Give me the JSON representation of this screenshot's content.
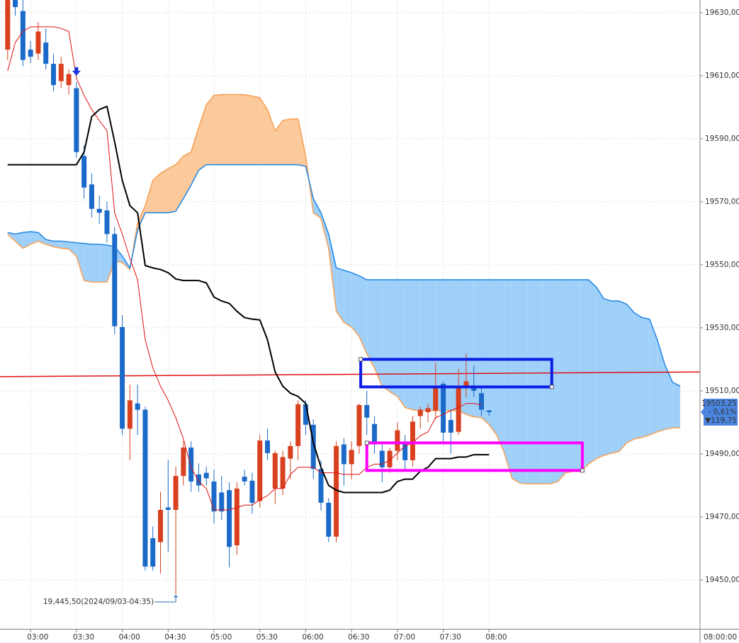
{
  "chart_data": {
    "type": "candlestick",
    "x": [
      "02:45",
      "02:50",
      "02:55",
      "03:00",
      "03:05",
      "03:10",
      "03:15",
      "03:20",
      "03:25",
      "03:30",
      "03:35",
      "03:40",
      "03:45",
      "03:50",
      "03:55",
      "04:00",
      "04:05",
      "04:10",
      "04:15",
      "04:20",
      "04:25",
      "04:30",
      "04:35",
      "04:40",
      "04:45",
      "04:50",
      "04:55",
      "05:00",
      "05:05",
      "05:10",
      "05:15",
      "05:20",
      "05:25",
      "05:30",
      "05:35",
      "05:40",
      "05:45",
      "05:50",
      "05:55",
      "06:00",
      "06:05",
      "06:10",
      "06:15",
      "06:20",
      "06:25",
      "06:30",
      "06:35",
      "06:40",
      "06:45",
      "06:50",
      "06:55",
      "07:00",
      "07:05",
      "07:10",
      "07:15",
      "07:20",
      "07:25",
      "07:30",
      "07:35",
      "07:40",
      "07:45",
      "07:50",
      "07:55",
      "08:00",
      "08:05",
      "08:10",
      "08:15",
      "08:20",
      "08:25",
      "08:30",
      "08:35",
      "08:40",
      "08:45",
      "08:50",
      "08:55",
      "09:00",
      "09:05",
      "09:10",
      "09:15",
      "09:20",
      "09:25",
      "09:30",
      "09:35",
      "09:40",
      "09:45",
      "09:50",
      "09:55",
      "10:00",
      "10:05"
    ],
    "xlim": [
      "02:40",
      "10:18"
    ],
    "xticks": [
      "03:00",
      "03:30",
      "04:00",
      "04:30",
      "05:00",
      "05:30",
      "06:00",
      "06:30",
      "07:00",
      "07:30",
      "08:00"
    ],
    "ylim": [
      19434.5,
      19634
    ],
    "yticks": [
      {
        "value": 19630,
        "label": "19630,00"
      },
      {
        "value": 19610,
        "label": "19610,00"
      },
      {
        "value": 19590,
        "label": "19590,00"
      },
      {
        "value": 19570,
        "label": "19570,00"
      },
      {
        "value": 19550,
        "label": "19550,00"
      },
      {
        "value": 19530,
        "label": "19530,00"
      },
      {
        "value": 19510,
        "label": "19510,00"
      },
      {
        "value": 19490,
        "label": "19490,00"
      },
      {
        "value": 19470,
        "label": "19470,00"
      },
      {
        "value": 19450,
        "label": "19450,00"
      }
    ],
    "grid": true,
    "candles": {
      "up_color": "#d8401f",
      "down_color": "#1b6ac9",
      "open": [
        19618.25,
        19634,
        19630.5,
        19618.25,
        19617,
        19620.5,
        19613.75,
        19608.25,
        19607,
        19606,
        19584.5,
        19575.5,
        19567.75,
        19567.25,
        19559.75,
        19530.25,
        19498,
        19506,
        19504,
        19463.25,
        19462,
        19473,
        19472.25,
        19483,
        19492,
        19483.5,
        19484,
        19481.25,
        19477.75,
        19478.5,
        19461,
        19482.75,
        19481.5,
        19475,
        19494.25,
        19479,
        19479,
        19488.5,
        19492.5,
        19505.75,
        19499.25,
        19485.25,
        19474.5,
        19463.75,
        19493,
        19486.75,
        19492.5,
        19505.5,
        19499.5,
        19491,
        19485.75,
        19491,
        19493.75,
        19488,
        19502,
        19503.25,
        19503.75,
        19512.25,
        19500.75,
        19497,
        19511.5,
        19511.5,
        19509.25,
        19503.75,
        null,
        null,
        null,
        null,
        null,
        null,
        null,
        null,
        null,
        null,
        null,
        null,
        null,
        null,
        null,
        null,
        null,
        null,
        null,
        null,
        null,
        null,
        null,
        null,
        null
      ],
      "high": [
        19634,
        19634,
        19634,
        19621,
        19627,
        19625,
        19617,
        19616,
        19612,
        19608,
        19588,
        19579,
        19572,
        19570,
        19562,
        19534,
        19512,
        19512,
        19505,
        19467,
        19478,
        19488,
        19486,
        19494,
        19494,
        19487,
        19486,
        19485,
        19483,
        19481,
        19481,
        19485,
        19484,
        19496,
        19498,
        19491,
        19491,
        19494,
        19507,
        19507,
        19501,
        19488,
        19476,
        19494,
        19495,
        19494,
        19506,
        19510,
        19502,
        19494,
        19492,
        19500,
        19496,
        19502,
        19505,
        19506,
        19519,
        19513,
        19504,
        19517,
        19522,
        19518,
        19511,
        19504,
        null,
        null,
        null,
        null,
        null,
        null,
        null,
        null,
        null,
        null,
        null,
        null,
        null,
        null,
        null,
        null,
        null,
        null,
        null,
        null,
        null,
        null,
        null,
        null,
        null
      ],
      "low": [
        19615,
        19629,
        19613,
        19614,
        19615,
        19612,
        19605,
        19606,
        19604,
        19584,
        19571,
        19565,
        19563,
        19557,
        19528,
        19496,
        19488,
        19496,
        19453,
        19453,
        19452,
        19459,
        19445.5,
        19480,
        19478,
        19478,
        19480,
        19468,
        19469,
        19454,
        19458,
        19480,
        19471,
        19473,
        19488,
        19474,
        19477,
        19482,
        19488,
        19496,
        19482,
        19472,
        19462,
        19462,
        19480,
        19482,
        19490,
        19496,
        19490,
        19481,
        19484,
        19488,
        19485,
        19486,
        19498,
        19500,
        19501,
        19494,
        19490,
        19496,
        19508,
        19508,
        19502,
        19502,
        null,
        null,
        null,
        null,
        null,
        null,
        null,
        null,
        null,
        null,
        null,
        null,
        null,
        null,
        null,
        null,
        null,
        null,
        null,
        null,
        null,
        null,
        null,
        null,
        null
      ],
      "close": [
        19634,
        19631.75,
        19615,
        19616,
        19624,
        19613.75,
        19607,
        19613.75,
        19610.5,
        19585.75,
        19574.5,
        19567.75,
        19566.5,
        19559.75,
        19530.5,
        19498,
        19507,
        19504,
        19454.25,
        19454.25,
        19472.25,
        19472.25,
        19483,
        19492,
        19481.25,
        19480,
        19482.25,
        19471.75,
        19471.75,
        19460.5,
        19479,
        19481.25,
        19474.5,
        19494.25,
        19490.25,
        19490.25,
        19489,
        19492.5,
        19505.75,
        19499.25,
        19485.25,
        19474.5,
        19463.75,
        19492.5,
        19486.75,
        19491.25,
        19505.5,
        19501.5,
        19493,
        19485.75,
        19491,
        19497.5,
        19488,
        19500.25,
        19504,
        19504.5,
        19511.5,
        19496.75,
        19496.75,
        19511.5,
        19513,
        19510,
        19504,
        19503.25,
        null,
        null,
        null,
        null,
        null,
        null,
        null,
        null,
        null,
        null,
        null,
        null,
        null,
        null,
        null,
        null,
        null,
        null,
        null,
        null,
        null,
        null,
        null,
        null,
        null
      ]
    },
    "cloud": {
      "span_a": {
        "color": "#f5a35a",
        "fill": "#fcc99b",
        "values": [
          19559.75,
          19557.5,
          19555.25,
          19556.5,
          19557.5,
          19556.5,
          19555.75,
          19555.25,
          19555,
          19552.75,
          19545,
          19544.5,
          19544.5,
          19544.5,
          19551.25,
          19550.75,
          19548.5,
          19563.25,
          19568.75,
          19576.75,
          19579,
          19580.5,
          19581.75,
          19584.5,
          19585.75,
          19593.5,
          19600.75,
          19603.75,
          19604,
          19604,
          19604,
          19604,
          19603.5,
          19603,
          19599.25,
          19592.5,
          19595.75,
          19596.25,
          19596.25,
          19584.5,
          19566.5,
          19564.75,
          19555.25,
          19535.25,
          19531.75,
          19530.25,
          19527.25,
          19521.75,
          19517.25,
          19511.5,
          19509.75,
          19508.25,
          19504.75,
          19504,
          19503.75,
          19503.75,
          19503.75,
          19503.75,
          19503.75,
          19503.75,
          19502.5,
          19501.75,
          19501.5,
          19499.25,
          19496,
          19490.25,
          19482.25,
          19480.75,
          19480.5,
          19480.5,
          19480.5,
          19480.5,
          19481.25,
          19484,
          19484.5,
          19484.5,
          19486.75,
          19488.5,
          19489.5,
          19490.25,
          19490.75,
          19493.5,
          19494.75,
          19495.25,
          19496,
          19497,
          19497.75,
          19498.25,
          19498.25
        ]
      },
      "span_b": {
        "color": "#2a8be4",
        "fill": "#9fd0fa",
        "values": [
          19560.25,
          19559.75,
          19560.25,
          19560.5,
          19560.25,
          19558,
          19557.5,
          19557.5,
          19557.25,
          19557,
          19556.75,
          19556.5,
          19556.5,
          19556.25,
          19555.75,
          19552.75,
          19549,
          19561,
          19566.5,
          19566.5,
          19566.5,
          19566.5,
          19567,
          19571,
          19575.25,
          19580,
          19581.75,
          19581.75,
          19581.75,
          19581.75,
          19581.75,
          19581.75,
          19581.75,
          19581.75,
          19581.75,
          19581.75,
          19581.75,
          19581.75,
          19581.75,
          19581.25,
          19571,
          19566.5,
          19559.75,
          19549,
          19548.25,
          19547.5,
          19546.5,
          19545.25,
          19545.25,
          19545.25,
          19545.25,
          19545.25,
          19545.25,
          19545.25,
          19545.25,
          19545.25,
          19545.25,
          19545.25,
          19545.25,
          19545.25,
          19545.25,
          19545.25,
          19545.25,
          19545.25,
          19545.25,
          19545.25,
          19545.25,
          19545.25,
          19545.25,
          19545.25,
          19545.25,
          19545.25,
          19545.25,
          19545.25,
          19545.25,
          19545.25,
          19545.25,
          19543,
          19539.25,
          19538.5,
          19538.5,
          19537.5,
          19534.75,
          19533.25,
          19532.75,
          19526.25,
          19518.25,
          19512.75,
          19511.5
        ]
      }
    },
    "lines": [
      {
        "color": "#e01010",
        "width": 1,
        "values": [
          19611.5,
          19620.5,
          19624,
          19625.5,
          19625.5,
          19625.5,
          19625.5,
          19625,
          19624,
          19609.25,
          19603.75,
          19599.25,
          19595.75,
          19592.5,
          19566.5,
          19559.75,
          19552,
          19545.25,
          19526.25,
          19517.25,
          19511.5,
          19507,
          19501.5,
          19494.75,
          19485.75,
          19481.25,
          19479,
          19472.25,
          19472.25,
          19472.25,
          19473,
          19473.75,
          19473.75,
          19475.5,
          19476.75,
          19479,
          19479,
          19483.5,
          19485.75,
          19485.75,
          19485.75,
          19484,
          19484,
          19484,
          19483.5,
          19483.5,
          19483.5,
          19485.75,
          19486.75,
          19486.75,
          19488,
          19490.25,
          19492.5,
          19493.5,
          19495.75,
          19497,
          19501.5,
          19502.5,
          19503.75,
          19504.75,
          19506,
          19506,
          19505.5,
          null,
          null,
          null,
          null,
          null,
          null,
          null,
          null,
          null,
          null,
          null,
          null,
          null,
          null,
          null,
          null,
          null,
          null,
          null,
          null,
          null,
          null,
          null,
          null,
          null,
          null
        ]
      },
      {
        "color": "#000000",
        "width": 2,
        "values": [
          19581.75,
          19581.75,
          19581.75,
          19581.75,
          19581.75,
          19581.75,
          19581.75,
          19581.75,
          19581.75,
          19581.75,
          19585.75,
          19597,
          19599.25,
          19600.25,
          19589,
          19576.75,
          19568.75,
          19566.5,
          19549.75,
          19549,
          19548.5,
          19547.5,
          19545.5,
          19545,
          19545,
          19545,
          19544.25,
          19539.75,
          19538.5,
          19537.75,
          19535.25,
          19533.25,
          19532.75,
          19532.5,
          19526.25,
          19516,
          19511.5,
          19509.25,
          19508.25,
          19506,
          19493.5,
          19485.75,
          19480,
          19478.5,
          19477.75,
          19477.75,
          19477.75,
          19477.75,
          19477.75,
          19477.75,
          19478.5,
          19481.25,
          19482,
          19482,
          19484.5,
          19485.75,
          19488.5,
          19488.5,
          19488.5,
          19489,
          19489,
          19489.75,
          19489.75,
          19489.75,
          null,
          null,
          null,
          null,
          null,
          null,
          null,
          null,
          null,
          null,
          null,
          null,
          null,
          null,
          null,
          null,
          null,
          null,
          null,
          null,
          null,
          null,
          null,
          null,
          null
        ]
      }
    ],
    "trendline": {
      "color": "#e01010",
      "x": [
        "02:40",
        "10:18"
      ],
      "values": [
        19514.5,
        19516
      ]
    },
    "boxes": [
      {
        "color": "#0c1ee6",
        "x": [
          "06:36",
          "08:41"
        ],
        "values": [
          19511.25,
          19520
        ]
      },
      {
        "color": "#ff00ff",
        "x": [
          "06:40",
          "09:01"
        ],
        "values": [
          19484.75,
          19493.5
        ]
      }
    ],
    "signal": {
      "x": "03:30",
      "value": 19610,
      "color": "#1a32e0"
    },
    "low_annotation": {
      "text": "19,445,50(2024/09/03-04:35)",
      "x": "04:35",
      "value": 19445.5,
      "color": "#2d6db8"
    },
    "price_label": {
      "value": 19503.25,
      "label": "19503,25",
      "change": "- 0,61%",
      "diff": "▼119,75",
      "color": "#4a86e0"
    },
    "cursor_time": "08:00:00"
  }
}
